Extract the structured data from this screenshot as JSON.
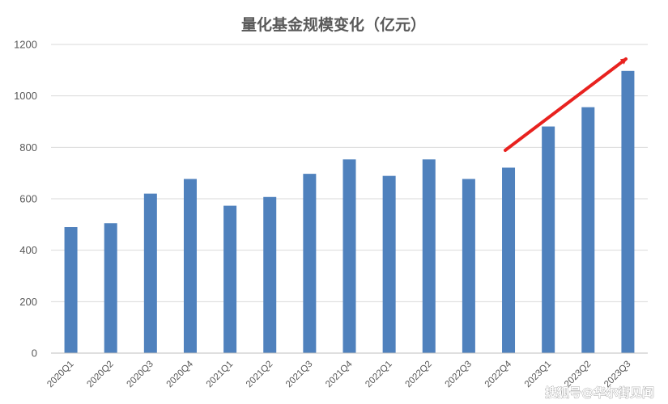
{
  "chart_data": {
    "type": "bar",
    "title": "量化基金规模变化（亿元）",
    "xlabel": "",
    "ylabel": "",
    "categories": [
      "2020Q1",
      "2020Q2",
      "2020Q3",
      "2020Q4",
      "2021Q1",
      "2021Q2",
      "2021Q3",
      "2021Q4",
      "2022Q1",
      "2022Q2",
      "2022Q3",
      "2022Q4",
      "2023Q1",
      "2023Q2",
      "2023Q3"
    ],
    "values": [
      490,
      505,
      620,
      677,
      573,
      607,
      697,
      753,
      689,
      753,
      677,
      721,
      881,
      956,
      1097
    ],
    "ylim": [
      0,
      1200
    ],
    "yticks": [
      0,
      200,
      400,
      600,
      800,
      1000,
      1200
    ],
    "grid": true,
    "bar_color": "#4f81bd",
    "annotation": {
      "type": "arrow",
      "color": "#e8221f",
      "meaning": "upward trend"
    }
  },
  "watermark": "搜狐号@华尔街见闻"
}
